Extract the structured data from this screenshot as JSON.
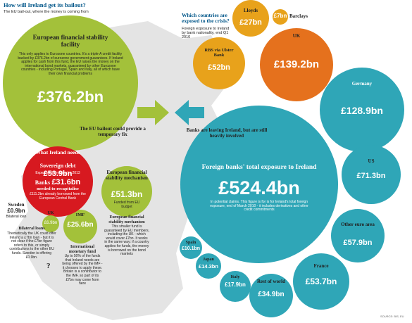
{
  "left": {
    "title": "How will Ireland get its bailout?",
    "subtitle": "The EU bail-out, where the money is coming from",
    "efsf": {
      "label": "European financial stability facility",
      "note": "This only applies to Eurozone countries. It's a triple-A credit facility backed by £376.2bn of eurozone government guarantees. If Ireland applies for cash from this fund, the EU raises the money on the international bond markets, guaranteed by other Eurozone countries - including Portugal, Spain and Italy, all of which have their own financial problems",
      "amount": "£376.2bn"
    },
    "needs": {
      "label": "What Ireland needs",
      "debt_label": "Sovereign debt",
      "debt_amount": "£53.9bn",
      "debt_note": "Expected borrowing by 2013",
      "banks_label": "Banks",
      "banks_amount": "£31.6bn",
      "banks_note": "needed to recapitalise",
      "banks_detail": "£111.2bn already borrowed from the European Central Bank"
    },
    "efsm": {
      "label": "European financial stability mechanism",
      "amount": "£51.3bn",
      "note": "Funded from EU budget"
    },
    "imf": {
      "label": "IMF",
      "amount": "£25.6bn"
    },
    "uk": {
      "label": "UK",
      "amount": "£6.9bn"
    },
    "sweden": {
      "label": "Sweden",
      "amount": "£0.9bn",
      "note": "Bilateral loan"
    },
    "bilateral": {
      "title": "Bilateral loans",
      "text": "Theoretically the UK could offer Ireland a £7bn loan - but it is not clear if the £7bn figure refers to this, or simply contributions to the other EU funds. Sweden is offering £0.9bn."
    },
    "imf_box": {
      "title": "International monetary fund",
      "text": "Up to 50% of the funds that Ireland needs are being offered by the IMF - it chooses to apply these. Britain is a contributor to the IMF, so part of its £7bn may come from here"
    },
    "efsm_box": {
      "title": "European financial stability mechanism",
      "text": "This smaller fund is guaranteed by EU members, including the UK - which would cover £7bn. It works in the same way: if a country applies for funds, the money is borrowed on the bond markets"
    },
    "question": "?",
    "arrow": "The EU bailout could provide a temporary fix"
  },
  "right": {
    "title": "Which countries are exposed to the crisis?",
    "subtitle": "Foreign exposure to Ireland by bank nationality, end Q1 2010",
    "arrow": "Banks are leaving Ireland, but are still heavily involved",
    "total": {
      "label": "Foreign banks' total exposure to Ireland",
      "amount": "£524.4bn",
      "note": "In potential claims. This figure is for is for Ireland's total foreign exposure, end of March 2010 - it includes derivatives and other credit commitments"
    },
    "banks": [
      {
        "label": "Lloyds",
        "amount": "£27bn"
      },
      {
        "label": "Barclays",
        "amount": "£7bn"
      },
      {
        "label": "RBS via Ulster Bank",
        "amount": "£52bn"
      }
    ],
    "countries": [
      {
        "label": "UK",
        "amount": "£139.2bn"
      },
      {
        "label": "Germany",
        "amount": "£128.9bn"
      },
      {
        "label": "US",
        "amount": "£71.3bn"
      },
      {
        "label": "Other euro area",
        "amount": "£57.9bn"
      },
      {
        "label": "France",
        "amount": "£53.7bn"
      },
      {
        "label": "Rest of world",
        "amount": "£34.9bn"
      },
      {
        "label": "Italy",
        "amount": "£17.9bn"
      },
      {
        "label": "Japan",
        "amount": "£14.3bn"
      },
      {
        "label": "Spain",
        "amount": "£10.1bn"
      }
    ],
    "source": "SOURCE: BIS, EU"
  }
}
